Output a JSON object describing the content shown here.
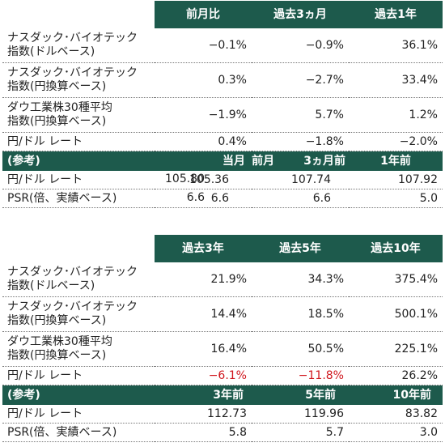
{
  "table1": {
    "header": [
      "前月比",
      "過去3ヵ月",
      "過去1年"
    ],
    "rows": [
      {
        "label1": "ナスダック･バイオテック",
        "label2": "指数(ドルベース)",
        "v": [
          "−0.1%",
          "−0.9%",
          "36.1%"
        ]
      },
      {
        "label1": "ナスダック･バイオテック",
        "label2": "指数(円換算ベース)",
        "v": [
          "0.3%",
          "−2.7%",
          "33.4%"
        ]
      },
      {
        "label1": "ダウ工業株30種平均",
        "label2": "指数(円換算ベース)",
        "v": [
          "−1.9%",
          "5.7%",
          "1.2%"
        ]
      },
      {
        "label1": "円/ドル レート",
        "v": [
          "0.4%",
          "−1.8%",
          "−2.0%"
        ]
      }
    ],
    "ref_header": [
      "(参考)",
      "当月",
      "前月",
      "3ヵ月前",
      "1年前"
    ],
    "ref_rows": [
      {
        "label": "円/ドル レート",
        "v": [
          "105.80",
          "105.36",
          "107.74",
          "107.92"
        ]
      },
      {
        "label": "PSR(倍、実績ベース)",
        "v": [
          "6.6",
          "6.6",
          "6.6",
          "5.0"
        ]
      }
    ]
  },
  "table2": {
    "header": [
      "過去3年",
      "過去5年",
      "過去10年"
    ],
    "rows": [
      {
        "label1": "ナスダック･バイオテック",
        "label2": "指数(ドルベース)",
        "v": [
          "21.9%",
          "34.3%",
          "375.4%"
        ]
      },
      {
        "label1": "ナスダック･バイオテック",
        "label2": "指数(円換算ベース)",
        "v": [
          "14.4%",
          "18.5%",
          "500.1%"
        ]
      },
      {
        "label1": "ダウ工業株30種平均",
        "label2": "指数(円換算ベース)",
        "v": [
          "16.4%",
          "50.5%",
          "225.1%"
        ]
      },
      {
        "label1": "円/ドル レート",
        "v": [
          "−6.1%",
          "−11.8%",
          "26.2%"
        ]
      }
    ],
    "ref_header": [
      "(参考)",
      "3年前",
      "5年前",
      "10年前"
    ],
    "ref_rows": [
      {
        "label": "円/ドル レート",
        "v": [
          "112.73",
          "119.96",
          "83.82"
        ]
      },
      {
        "label": "PSR(倍、実績ベース)",
        "v": [
          "5.8",
          "5.7",
          "3.0"
        ]
      }
    ]
  },
  "colors": {
    "header_bg": "#1d5a4c",
    "negative": "#d0161d"
  }
}
